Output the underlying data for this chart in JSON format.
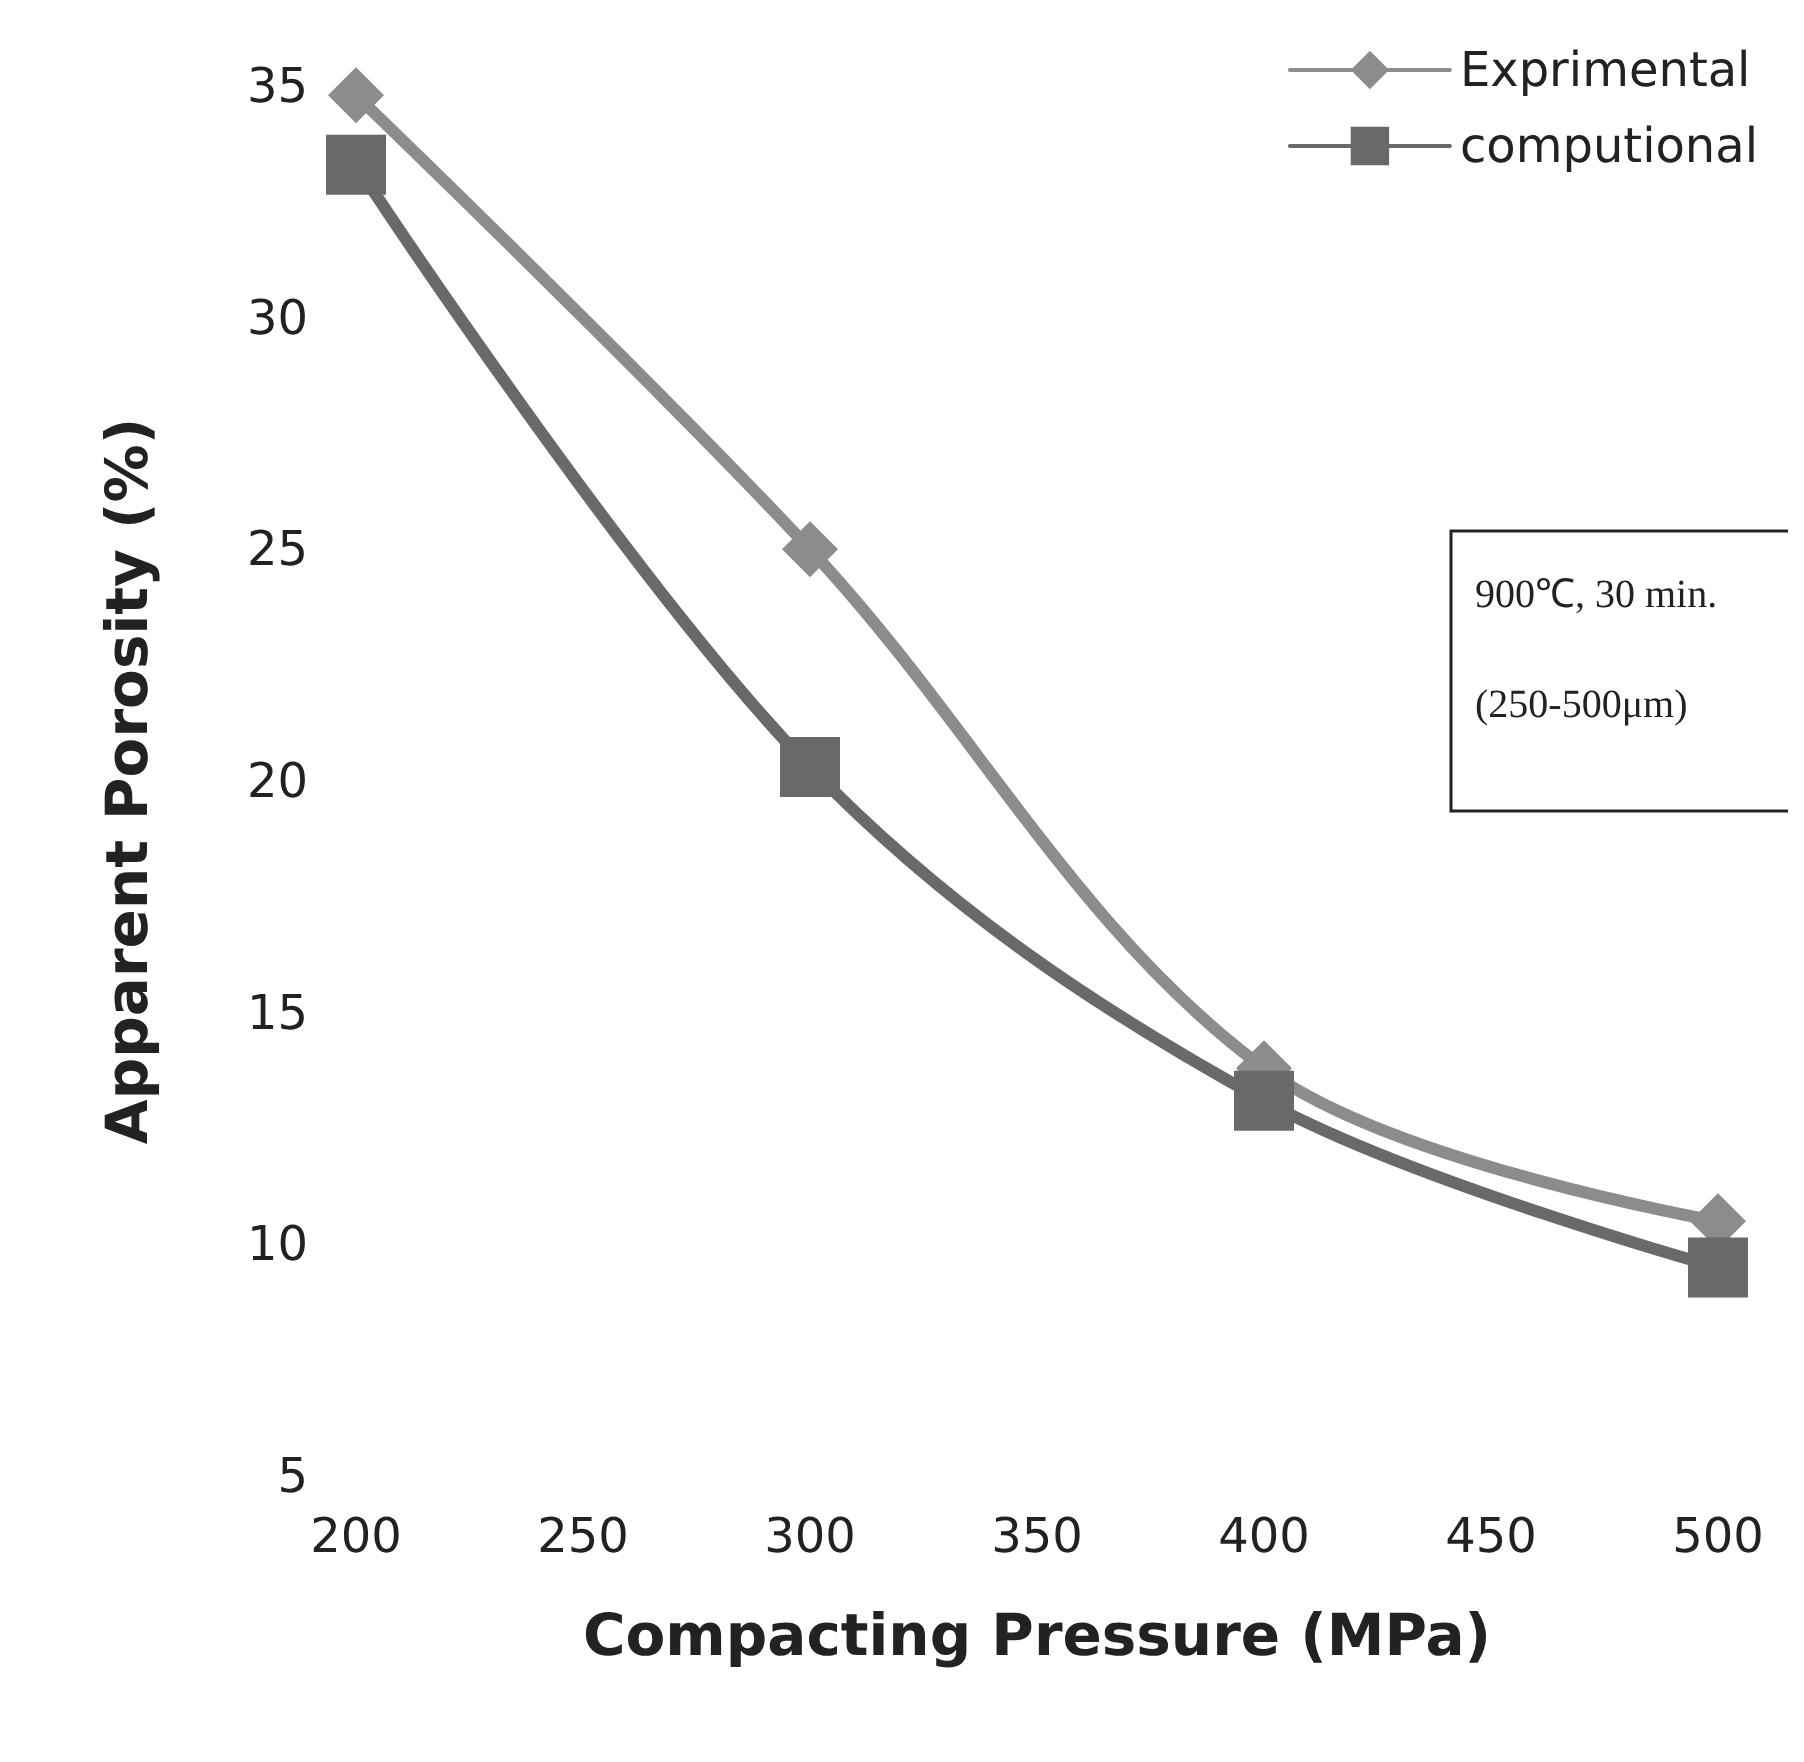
{
  "chart_data": {
    "type": "line",
    "xlabel": "Compacting Pressure (MPa)",
    "ylabel": "Apparent Porosity (%)",
    "x": [
      200,
      300,
      400,
      500
    ],
    "series": [
      {
        "name": "Exprimental",
        "color": "#8c8c8c",
        "marker": "diamond",
        "values": [
          34.8,
          25,
          13.8,
          10.5
        ]
      },
      {
        "name": "computional",
        "color": "#696969",
        "marker": "square",
        "values": [
          33.3,
          20.3,
          13.1,
          9.5
        ]
      }
    ],
    "xlim": [
      200,
      500
    ],
    "xticks": [
      200,
      250,
      300,
      350,
      400,
      450,
      500
    ],
    "ylim": [
      5,
      35
    ],
    "yticks": [
      5,
      10,
      15,
      20,
      25,
      30,
      35
    ],
    "grid": false,
    "legend": "top right",
    "annotations": [
      "900℃, 30 min.",
      "(250-500μm)"
    ]
  }
}
